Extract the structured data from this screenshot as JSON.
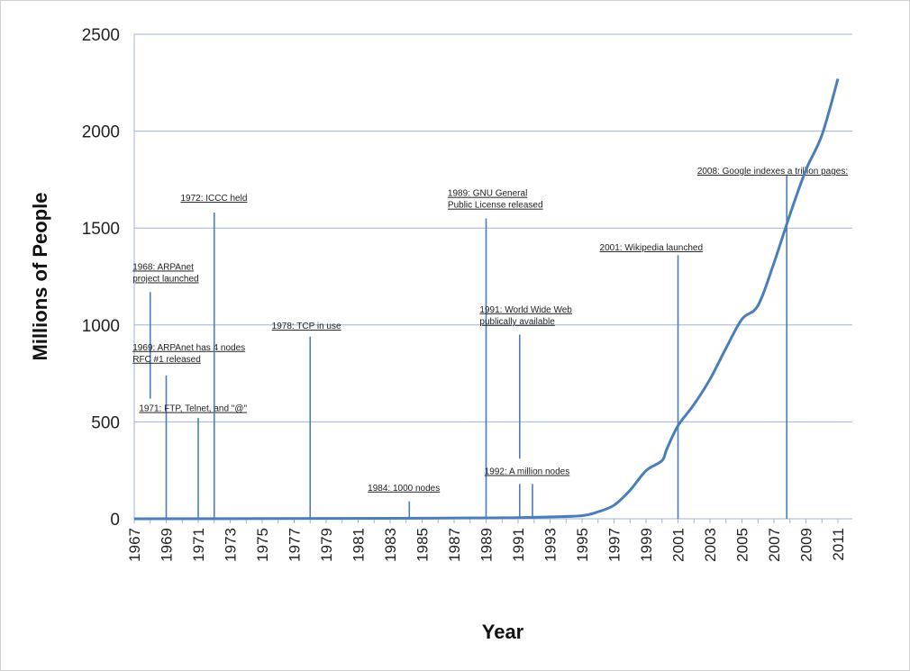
{
  "chart_data": {
    "type": "line",
    "title": "",
    "xlabel": "Year",
    "ylabel": "Millions of People",
    "xlim": [
      1967,
      2011.9
    ],
    "ylim": [
      0,
      2500
    ],
    "y_ticks": [
      "0",
      "500",
      "1000",
      "1500",
      "2000",
      "2500"
    ],
    "x_ticks": [
      "1967",
      "1969",
      "1971",
      "1973",
      "1975",
      "1977",
      "1979",
      "1981",
      "1983",
      "1985",
      "1987",
      "1989",
      "1991",
      "1993",
      "1995",
      "1997",
      "1999",
      "2001",
      "2003",
      "2005",
      "2007",
      "2009",
      "2011"
    ],
    "grid": "horizontal",
    "line_color": "#4a7ebb",
    "series": [
      {
        "x": [
          1967,
          1975,
          1985,
          1990,
          1993,
          1995,
          1996,
          1997,
          1998,
          1999,
          2000,
          2000.3,
          2001,
          2002,
          2003,
          2004,
          2005,
          2006,
          2007,
          2008,
          2009,
          2010,
          2011
        ],
        "values": [
          0,
          1,
          3,
          5,
          10,
          16,
          36,
          70,
          147,
          248,
          300,
          360,
          480,
          590,
          720,
          880,
          1030,
          1100,
          1320,
          1570,
          1800,
          1980,
          2270
        ]
      }
    ],
    "annotations": [
      {
        "label_lines": [
          "1968: ARPAnet",
          "project launched"
        ],
        "year": 1968,
        "line_top": 1170,
        "line_bottom": 620,
        "align": "start",
        "text_x": 1966.9,
        "text_y": 1285
      },
      {
        "label_lines": [
          "1969: ARPAnet has 4 nodes",
          "RFC #1 released"
        ],
        "year": 1969,
        "line_top": 740,
        "line_bottom": 0,
        "align": "start",
        "text_x": 1966.9,
        "text_y": 870
      },
      {
        "label_lines": [
          "1971: FTP, Telnet, and \"@\""
        ],
        "year": 1971,
        "line_top": 520,
        "line_bottom": 0,
        "align": "start",
        "text_x": 1967.3,
        "text_y": 555
      },
      {
        "label_lines": [
          "1972: ICCC held"
        ],
        "year": 1972,
        "line_top": 1580,
        "line_bottom": 0,
        "align": "start",
        "text_x": 1969.9,
        "text_y": 1640
      },
      {
        "label_lines": [
          "1978: TCP in use"
        ],
        "year": 1978,
        "line_top": 940,
        "line_bottom": 0,
        "align": "start",
        "text_x": 1975.6,
        "text_y": 980
      },
      {
        "label_lines": [
          "1984: 1000 nodes"
        ],
        "year": 1984.2,
        "line_top": 90,
        "line_bottom": 0,
        "align": "start",
        "text_x": 1981.6,
        "text_y": 145
      },
      {
        "label_lines": [
          "1989: GNU General",
          "Public License  released"
        ],
        "year": 1989,
        "line_top": 1550,
        "line_bottom": 0,
        "align": "start",
        "text_x": 1986.6,
        "text_y": 1665
      },
      {
        "label_lines": [
          "1991: World Wide Web",
          "publically  available"
        ],
        "year": 1991.1,
        "line_top": 950,
        "line_bottom": 310,
        "align": "start",
        "text_x": 1988.6,
        "text_y": 1065
      },
      {
        "label_lines": [],
        "year": 1991.1,
        "line_top": 180,
        "line_bottom": 0,
        "align": "start",
        "text_x": 0,
        "text_y": 0
      },
      {
        "label_lines": [
          "1992: A million nodes"
        ],
        "year": 1991.9,
        "line_top": 180,
        "line_bottom": 0,
        "align": "start",
        "text_x": 1988.9,
        "text_y": 230
      },
      {
        "label_lines": [
          "2001: Wikipedia launched"
        ],
        "year": 2001,
        "line_top": 1360,
        "line_bottom": 0,
        "align": "start",
        "text_x": 1996.1,
        "text_y": 1385
      },
      {
        "label_lines": [
          "2008: Google indexes a trillion pages:"
        ],
        "year": 2007.8,
        "line_top": 1770,
        "line_bottom": 0,
        "align": "start",
        "text_x": 2002.2,
        "text_y": 1780
      }
    ]
  }
}
